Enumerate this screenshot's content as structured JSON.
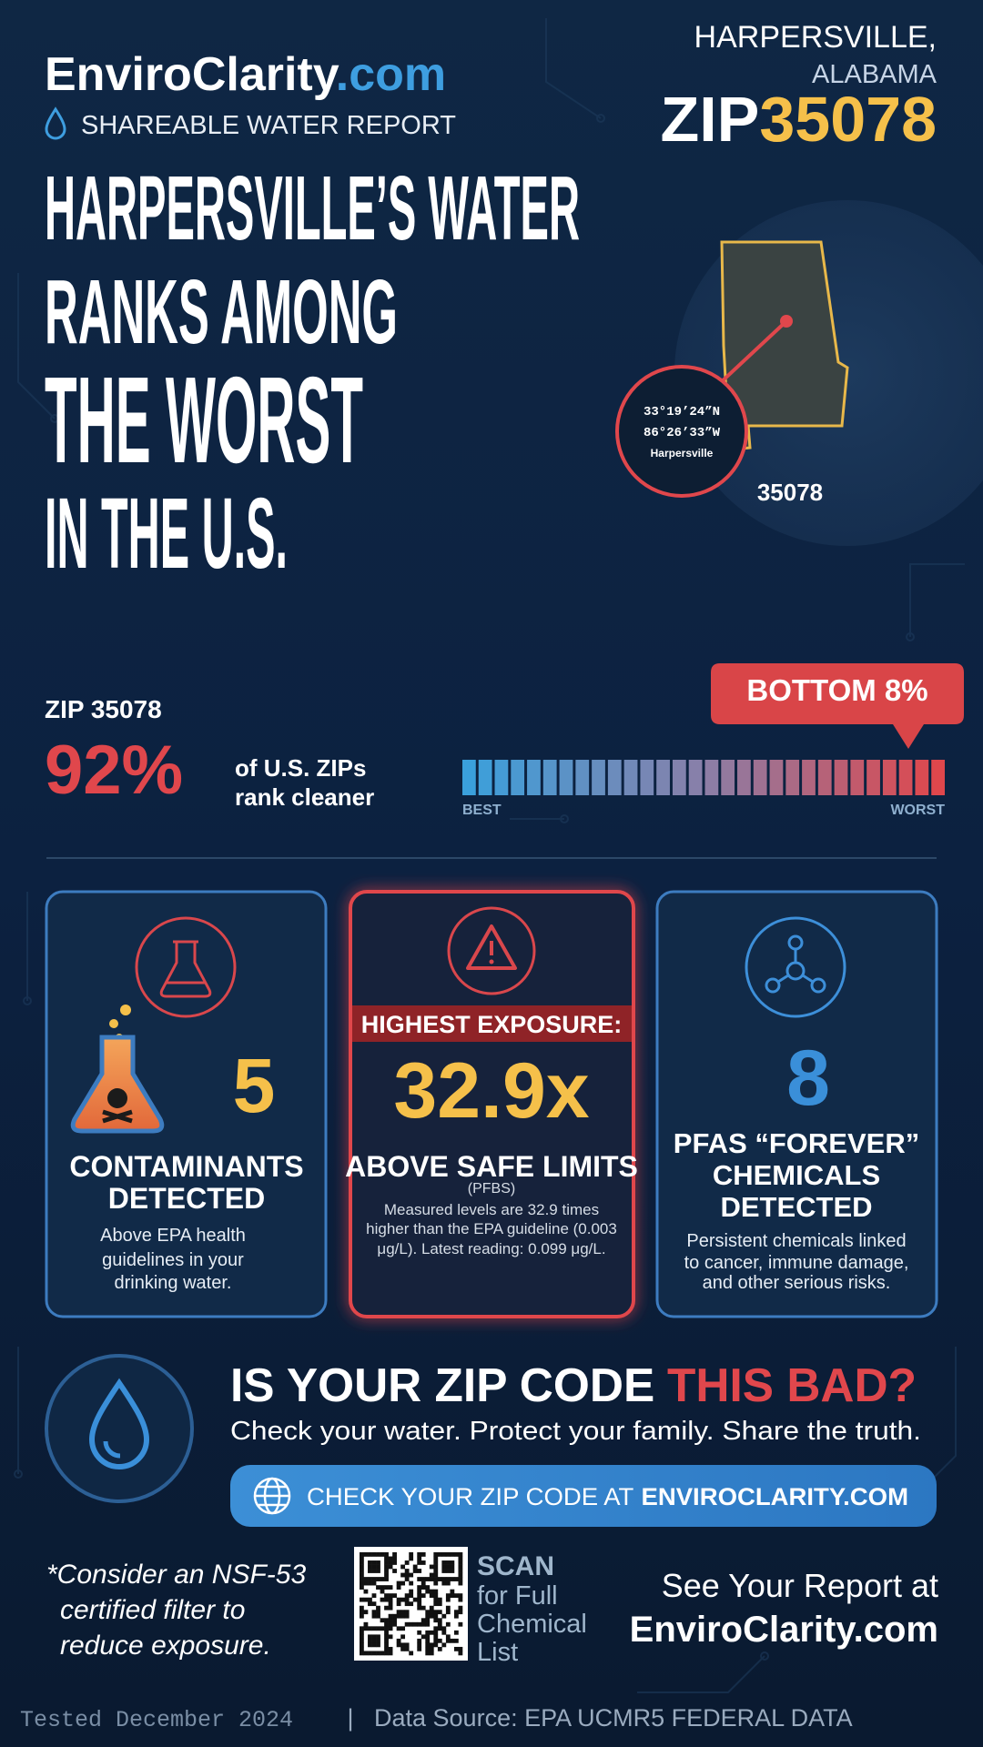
{
  "header": {
    "brand": "EnviroClarity",
    "brand_suffix": ".com",
    "subtitle": "SHAREABLE WATER REPORT",
    "city": "HARPERSVILLE,",
    "state": "ALABAMA",
    "zip_prefix": "ZIP",
    "zip": "35078"
  },
  "headline": {
    "lines": [
      "HARPERSVILLE’S WATER",
      "RANKS AMONG",
      "THE WORST",
      "IN THE U.S."
    ]
  },
  "map": {
    "latitude": "33°19’24”N",
    "longitude": "86°26’33”W",
    "place": "Harpersville",
    "zip": "35078"
  },
  "ranking": {
    "label": "ZIP 35078",
    "percent": "92%",
    "caption": [
      "of U.S. ZIPs",
      "rank cleaner"
    ],
    "callout": "BOTTOM 8%",
    "scale_start": "BEST",
    "scale_end": "WORST"
  },
  "cards": [
    {
      "value": "5",
      "title": [
        "CONTAMINANTS",
        "DETECTED"
      ],
      "description": [
        "Above EPA health",
        "guidelines in your",
        "drinking water."
      ]
    },
    {
      "banner": "HIGHEST EXPOSURE:",
      "value": "32.9x",
      "title": [
        "ABOVE SAFE LIMITS"
      ],
      "note": "(PFBS)",
      "description": [
        "Measured levels are 32.9 times",
        "higher than the EPA guideline (0.003",
        "μg/L). Latest reading: 0.099 μg/L."
      ]
    },
    {
      "value": "8",
      "title": [
        "PFAS “FOREVER”",
        "CHEMICALS",
        "DETECTED"
      ],
      "description": [
        "Persistent chemicals linked",
        "to cancer, immune damage,",
        "and other serious risks."
      ]
    }
  ],
  "cta": {
    "heading": "IS YOUR ZIP CODE",
    "heading_highlight": "THIS BAD?",
    "subheading": "Check your water. Protect your family. Share the truth.",
    "button": "CHECK YOUR ZIP CODE AT",
    "button_site": "ENVIROCLARITY.COM"
  },
  "footer": {
    "note": [
      "*Consider an NSF-53",
      "certified filter to",
      "reduce exposure."
    ],
    "scan": "SCAN",
    "scan_lines": [
      "for Full",
      "Chemical",
      "List"
    ],
    "report_label": "See Your Report at",
    "report_site": "EnviroClarity.com",
    "tested": "Tested December 2024",
    "separator": "|",
    "source": "Data Source: EPA UCMR5 FEDERAL DATA"
  }
}
